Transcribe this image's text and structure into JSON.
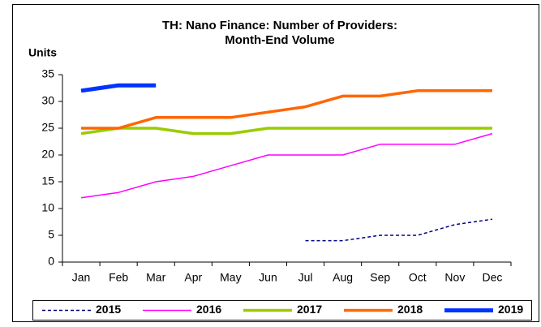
{
  "chart_data": {
    "type": "line",
    "title": [
      "TH: Nano Finance: Number of Providers:",
      "Month-End Volume"
    ],
    "y_label": "Units",
    "categories": [
      "Jan",
      "Feb",
      "Mar",
      "Apr",
      "May",
      "Jun",
      "Jul",
      "Aug",
      "Sep",
      "Oct",
      "Nov",
      "Dec"
    ],
    "series": [
      {
        "name": "2015",
        "color": "#000080",
        "dashed": true,
        "width": 1.5,
        "values": [
          null,
          null,
          null,
          null,
          null,
          null,
          4,
          4,
          5,
          5,
          7,
          8
        ]
      },
      {
        "name": "2016",
        "color": "#ff00ff",
        "dashed": false,
        "width": 1.5,
        "values": [
          12,
          13,
          15,
          16,
          18,
          20,
          20,
          20,
          22,
          22,
          22,
          24
        ]
      },
      {
        "name": "2017",
        "color": "#99cc00",
        "dashed": false,
        "width": 3.5,
        "values": [
          24,
          25,
          25,
          24,
          24,
          25,
          25,
          25,
          25,
          25,
          25,
          25
        ]
      },
      {
        "name": "2018",
        "color": "#ff6600",
        "dashed": false,
        "width": 3.5,
        "values": [
          25,
          25,
          27,
          27,
          27,
          28,
          29,
          31,
          31,
          32,
          32,
          32
        ]
      },
      {
        "name": "2019",
        "color": "#0033ff",
        "dashed": false,
        "width": 5,
        "values": [
          32,
          33,
          33,
          null,
          null,
          null,
          null,
          null,
          null,
          null,
          null,
          null
        ]
      }
    ],
    "ylim": [
      0,
      35
    ],
    "yticks": [
      0,
      5,
      10,
      15,
      20,
      25,
      30,
      35
    ],
    "grid": false,
    "legend": "bottom"
  }
}
